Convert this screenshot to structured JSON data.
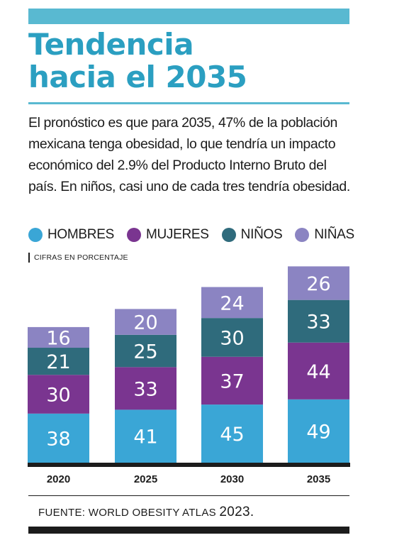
{
  "title_line1": "Tendencia",
  "title_line2": "hacia el 2035",
  "description": "El pronóstico es que para 2035, 47% de la población mexicana tenga obesidad, lo que tendría un impacto económico del 2.9% del Producto Interno Bruto del país. En niños, casi uno de cada tres tendría obesidad.",
  "units_note": "Cifras en porcentaje",
  "source_text": "FUENTE: WORLD OBESITY ATLAS",
  "source_year": "2023.",
  "colors": {
    "accent": "#59b9d1",
    "title": "#2b9fc1",
    "hombres": "#3aa6d6",
    "mujeres": "#7a3590",
    "ninos": "#2f6b7c",
    "ninas": "#8b84c2"
  },
  "chart_data": {
    "type": "bar",
    "stacked": true,
    "categories": [
      "2020",
      "2025",
      "2030",
      "2035"
    ],
    "series": [
      {
        "name": "HOMBRES",
        "values": [
          38,
          41,
          45,
          49
        ],
        "color": "#3aa6d6"
      },
      {
        "name": "MUJERES",
        "values": [
          30,
          33,
          37,
          44
        ],
        "color": "#7a3590"
      },
      {
        "name": "NIÑOS",
        "values": [
          21,
          25,
          30,
          33
        ],
        "color": "#2f6b7c"
      },
      {
        "name": "NIÑAS",
        "values": [
          16,
          20,
          24,
          26
        ],
        "color": "#8b84c2"
      }
    ],
    "legend": "top",
    "grid": false
  }
}
